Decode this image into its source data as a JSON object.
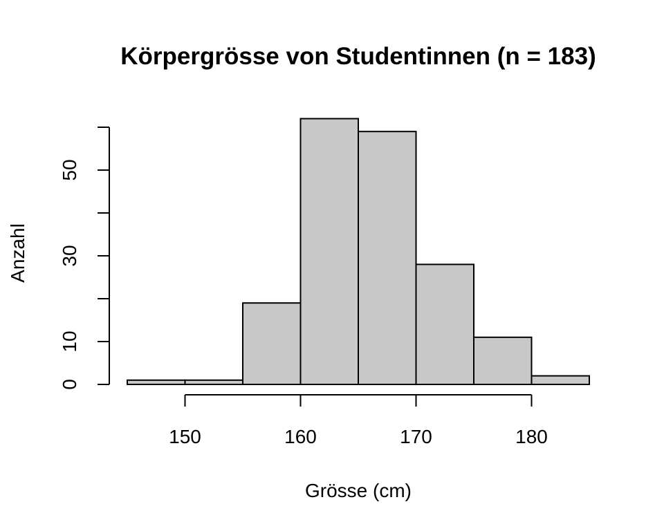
{
  "chart_data": {
    "type": "histogram",
    "title": "Körpergrösse von Studentinnen (n = 183)",
    "xlabel": "Grösse (cm)",
    "ylabel": "Anzahl",
    "bin_edges": [
      145,
      150,
      155,
      160,
      165,
      170,
      175,
      180,
      185
    ],
    "counts": [
      1,
      1,
      19,
      62,
      59,
      28,
      11,
      2
    ],
    "xlim": [
      145,
      185
    ],
    "ylim": [
      0,
      60
    ],
    "x_ticks": [
      150,
      160,
      170,
      180
    ],
    "x_tick_labels": [
      "150",
      "160",
      "170",
      "180"
    ],
    "y_ticks": [
      0,
      10,
      20,
      30,
      40,
      50,
      60
    ],
    "y_tick_labels": [
      "0",
      "10",
      "",
      "30",
      "",
      "50",
      ""
    ],
    "colors": {
      "bar_fill": "#c8c8c8",
      "bar_stroke": "#000000"
    },
    "grid": false,
    "legend": "none"
  }
}
